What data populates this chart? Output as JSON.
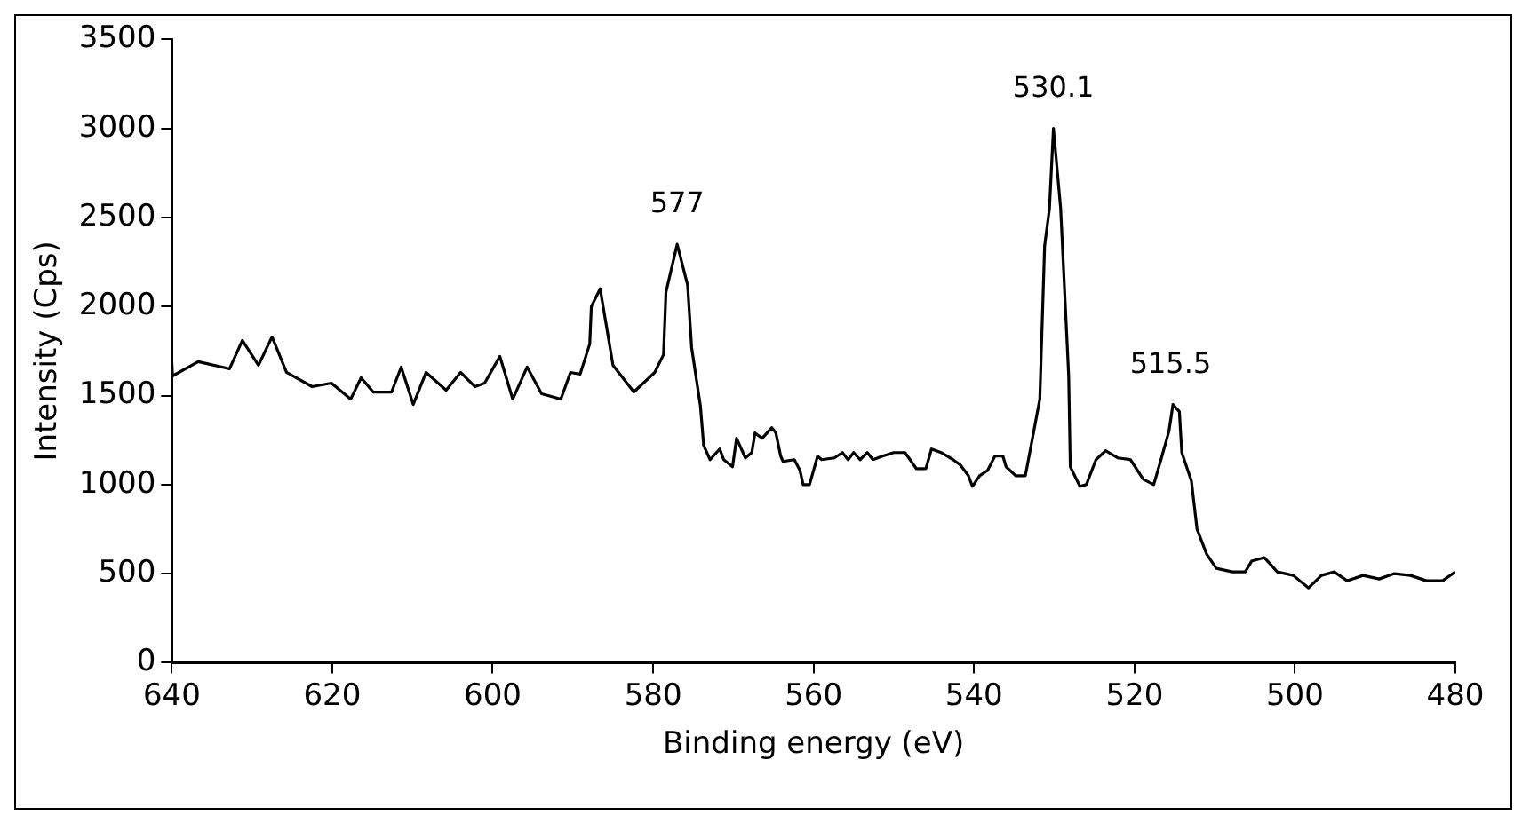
{
  "chart_data": {
    "type": "line",
    "xlabel": "Binding energy (eV)",
    "ylabel": "Intensity (Cps)",
    "xlim": [
      640,
      480
    ],
    "xticks": [
      640,
      620,
      600,
      580,
      560,
      540,
      520,
      500,
      480
    ],
    "ylim": [
      0,
      3500
    ],
    "yticks": [
      0,
      500,
      1000,
      1500,
      2000,
      2500,
      3000,
      3500
    ],
    "grid": false,
    "legend": false,
    "marker": "none",
    "line_style": "solid",
    "series": [
      {
        "color": "#000000",
        "x": [
          640,
          639.9,
          636.7,
          632.8,
          631.2,
          629.2,
          627.5,
          625.7,
          622.5,
          620.1,
          617.7,
          616.4,
          614.9,
          612.6,
          611.4,
          609.9,
          608.3,
          605.8,
          604,
          602.2,
          601,
          599.1,
          597.5,
          595.7,
          593.9,
          591.5,
          590.3,
          589.1,
          587.9,
          587.7,
          586.6,
          585,
          582.4,
          579.8,
          578.7,
          578.4,
          577,
          575.7,
          575.2,
          574.1,
          573.7,
          572.9,
          571.7,
          571.2,
          570.1,
          569.6,
          568.5,
          567.7,
          567.3,
          566.4,
          565.2,
          564.7,
          564.1,
          563.8,
          562.4,
          561.7,
          561.3,
          560.5,
          559.5,
          559,
          557.4,
          556.4,
          555.7,
          555,
          554.2,
          553.3,
          552.6,
          551.4,
          550,
          548.6,
          547.2,
          546,
          545.3,
          544.1,
          542.6,
          541.7,
          540.7,
          540.2,
          539.3,
          538.3,
          537.4,
          536.4,
          536,
          534.8,
          533.6,
          532.8,
          531.8,
          531.2,
          530.6,
          530.1,
          529.2,
          528.2,
          528,
          526.8,
          526,
          524.8,
          523.6,
          522.1,
          520.5,
          518.9,
          517.6,
          516.7,
          515.7,
          515.2,
          514.4,
          514.1,
          512.9,
          512.2,
          511,
          509.8,
          507.8,
          506.2,
          505.4,
          503.8,
          502.2,
          500.2,
          498.3,
          496.7,
          495.1,
          493.5,
          491.5,
          489.5,
          487.6,
          485.6,
          483.6,
          481.6,
          480
        ],
        "values": [
          1700,
          1610,
          1690,
          1650,
          1810,
          1670,
          1830,
          1630,
          1550,
          1570,
          1480,
          1600,
          1520,
          1520,
          1660,
          1450,
          1630,
          1530,
          1630,
          1550,
          1570,
          1720,
          1480,
          1660,
          1510,
          1480,
          1630,
          1620,
          1790,
          2000,
          2100,
          1670,
          1520,
          1630,
          1730,
          2080,
          2350,
          2120,
          1770,
          1440,
          1220,
          1140,
          1200,
          1140,
          1100,
          1260,
          1150,
          1180,
          1290,
          1260,
          1320,
          1290,
          1160,
          1130,
          1140,
          1080,
          1000,
          1000,
          1160,
          1140,
          1150,
          1180,
          1140,
          1180,
          1140,
          1180,
          1140,
          1160,
          1180,
          1180,
          1090,
          1090,
          1200,
          1180,
          1140,
          1110,
          1050,
          990,
          1050,
          1080,
          1160,
          1160,
          1100,
          1050,
          1050,
          1240,
          1480,
          2340,
          2550,
          3000,
          2550,
          1610,
          1100,
          990,
          1000,
          1140,
          1190,
          1150,
          1140,
          1030,
          1000,
          1140,
          1300,
          1450,
          1410,
          1180,
          1020,
          750,
          610,
          530,
          510,
          510,
          570,
          590,
          510,
          490,
          420,
          490,
          510,
          460,
          490,
          470,
          500,
          490,
          460,
          460,
          510
        ]
      }
    ],
    "annotations": [
      {
        "text": "577",
        "x": 577,
        "y": 2350
      },
      {
        "text": "530.1",
        "x": 530.1,
        "y": 3000
      },
      {
        "text": "515.5",
        "x": 515.5,
        "y": 1450
      }
    ]
  }
}
